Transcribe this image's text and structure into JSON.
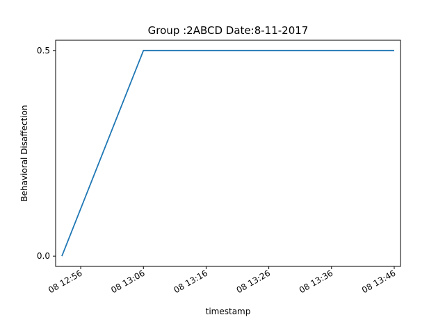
{
  "chart_data": {
    "type": "line",
    "title": "Group :2ABCD Date:8-11-2017",
    "xlabel": "timestamp",
    "ylabel": "Behavioral Disaffection",
    "x_unit": "time of day (HH:MM) on the 8th",
    "x_ticks": [
      "08 12:56",
      "08 13:06",
      "08 13:16",
      "08 13:26",
      "08 13:36",
      "08 13:46"
    ],
    "y_ticks": [
      "0.0",
      "0.5"
    ],
    "ylim": [
      0,
      0.5
    ],
    "xlim": [
      "12:52",
      "13:47"
    ],
    "grid": false,
    "legend": "none",
    "series": [
      {
        "color": "#1f77b4",
        "x": [
          "12:53",
          "13:06",
          "13:46"
        ],
        "y": [
          0.0,
          0.5,
          0.5
        ]
      }
    ]
  }
}
